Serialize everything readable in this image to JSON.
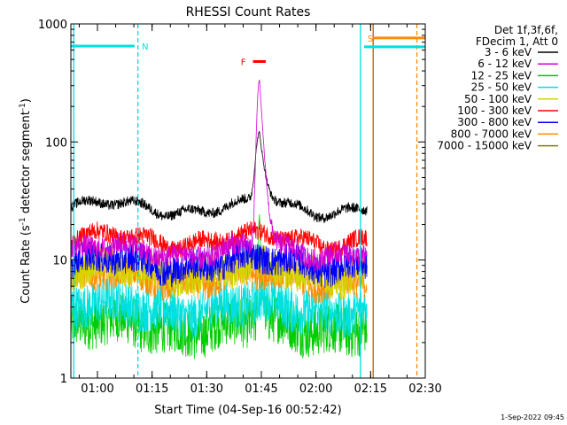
{
  "chart_data": {
    "type": "line",
    "title": "RHESSI Count Rates",
    "xlabel": "Start Time (04-Sep-16 00:52:42)",
    "ylabel_parts": [
      "Count Rate (s",
      "-1",
      " detector segment",
      "-1",
      ")"
    ],
    "yscale": "log",
    "ylim": [
      1,
      1000
    ],
    "xlim_minutes": [
      0,
      97.3
    ],
    "x_ticks": [
      {
        "label": "01:00",
        "minute": 7.3
      },
      {
        "label": "01:15",
        "minute": 22.3
      },
      {
        "label": "01:30",
        "minute": 37.3
      },
      {
        "label": "01:45",
        "minute": 52.3
      },
      {
        "label": "02:00",
        "minute": 67.3
      },
      {
        "label": "02:15",
        "minute": 82.3
      },
      {
        "label": "02:30",
        "minute": 97.3
      }
    ],
    "y_ticks": [
      {
        "label": "1",
        "value": 1
      },
      {
        "label": "10",
        "value": 10
      },
      {
        "label": "100",
        "value": 100
      },
      {
        "label": "1000",
        "value": 1000
      }
    ],
    "data_end_minute": 81.3,
    "peak_minute": 51.8,
    "legend": {
      "header": [
        "Det 1f,3f,6f,",
        "FDecim 1, Att 0"
      ],
      "position": "right",
      "entries": [
        {
          "label": "3 - 6 keV",
          "color": "#000000",
          "base": 28,
          "amp": 0.1,
          "peak": 118,
          "peak_width": 0.9
        },
        {
          "label": "6 - 12 keV",
          "color": "#d400d4",
          "base": 12,
          "amp": 0.22,
          "peak": 335,
          "peak_width": 0.6
        },
        {
          "label": "12 - 25 keV",
          "color": "#00cc00",
          "base": 2.8,
          "amp": 0.5,
          "peak": 24,
          "peak_width": 0.3
        },
        {
          "label": "25 - 50 keV",
          "color": "#00e0e0",
          "base": 4.0,
          "amp": 0.45,
          "peak": 0,
          "peak_width": 0
        },
        {
          "label": "50 - 100 keV",
          "color": "#d4d400",
          "base": 8,
          "amp": 0.35,
          "peak": 0,
          "peak_width": 0
        },
        {
          "label": "100 - 300 keV",
          "color": "#ff0000",
          "base": 15,
          "amp": 0.18,
          "peak": 0,
          "peak_width": 0
        },
        {
          "label": "300 - 800 keV",
          "color": "#0000ff",
          "base": 9.5,
          "amp": 0.3,
          "peak": 0,
          "peak_width": 0
        },
        {
          "label": "800 - 7000 keV",
          "color": "#ff8c00",
          "base": 7,
          "amp": 0.3,
          "peak": 0,
          "peak_width": 0
        },
        {
          "label": "7000 - 15000 keV",
          "color": "#808000",
          "base": 0,
          "amp": 0,
          "peak": 0,
          "peak_width": 0
        }
      ]
    },
    "annotations": [
      {
        "label": "N",
        "kind": "night",
        "color": "#00e0e0",
        "start_minute": 0,
        "end_minute": 17.5,
        "value": 650
      },
      {
        "label": "S",
        "kind": "saa",
        "color": "#ff8c00",
        "start_minute": 80.5,
        "end_minute": 97.3,
        "value": 760
      },
      {
        "label": "F",
        "kind": "flare",
        "color": "#ff0000",
        "start_minute": 49.5,
        "end_minute": 53.5,
        "value": 480
      }
    ],
    "marker_lines": [
      {
        "minute": 0.8,
        "color": "#00e0e0",
        "style": "solid"
      },
      {
        "minute": 18.4,
        "color": "#00e0e0",
        "style": "dashed"
      },
      {
        "minute": 79.5,
        "color": "#00e0e0",
        "style": "solid"
      },
      {
        "minute": 83.0,
        "color": "#b06000",
        "style": "solid"
      },
      {
        "minute": 95.0,
        "color": "#ff8c00",
        "style": "dashed"
      }
    ]
  },
  "footer": {
    "timestamp": "1-Sep-2022 09:45"
  }
}
